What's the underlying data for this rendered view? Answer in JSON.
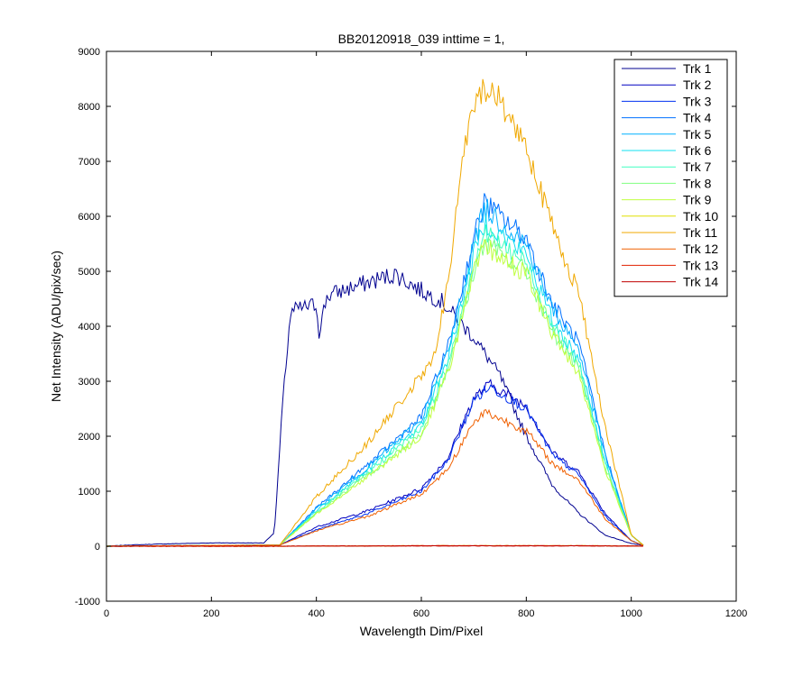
{
  "chart_data": {
    "type": "line",
    "title": "BB20120918_039 inttime = 1,",
    "xlabel": "Wavelength Dim/Pixel",
    "ylabel": "Net Intensity (ADU/pix/sec)",
    "xlim": [
      0,
      1200
    ],
    "ylim": [
      -1000,
      9000
    ],
    "xticks": [
      "0",
      "200",
      "400",
      "600",
      "800",
      "1000",
      "1200"
    ],
    "yticks": [
      "-1000",
      "0",
      "1000",
      "2000",
      "3000",
      "4000",
      "5000",
      "6000",
      "7000",
      "8000",
      "9000"
    ],
    "grid": false,
    "legend_position": "top-right",
    "series": [
      {
        "name": "Trk 1",
        "color": "#00008F",
        "x": [
          0,
          40,
          100,
          200,
          300,
          320,
          335,
          350,
          360,
          380,
          400,
          405,
          420,
          450,
          500,
          550,
          600,
          640,
          680,
          700,
          750,
          800,
          850,
          900,
          950,
          1000,
          1024
        ],
        "y": [
          0,
          20,
          40,
          60,
          60,
          250,
          2500,
          4200,
          4300,
          4350,
          4400,
          3900,
          4550,
          4650,
          4800,
          4950,
          4650,
          4450,
          4000,
          3800,
          3100,
          2000,
          1100,
          600,
          200,
          50,
          10
        ]
      },
      {
        "name": "Trk 2",
        "color": "#0000C0",
        "x": [
          0,
          330,
          400,
          500,
          600,
          650,
          700,
          730,
          800,
          850,
          900,
          950,
          1000,
          1024
        ],
        "y": [
          0,
          20,
          350,
          650,
          1050,
          1600,
          2700,
          2950,
          2550,
          1700,
          1350,
          600,
          100,
          10
        ]
      },
      {
        "name": "Trk 3",
        "color": "#0030F0",
        "x": [
          0,
          330,
          400,
          500,
          600,
          650,
          700,
          730,
          800,
          850,
          900,
          950,
          1000,
          1024
        ],
        "y": [
          0,
          20,
          300,
          600,
          1000,
          1550,
          2650,
          2900,
          2500,
          1650,
          1300,
          550,
          100,
          10
        ]
      },
      {
        "name": "Trk 4",
        "color": "#0070FF",
        "x": [
          0,
          330,
          400,
          500,
          600,
          650,
          700,
          720,
          800,
          850,
          900,
          950,
          1000,
          1024
        ],
        "y": [
          0,
          20,
          700,
          1500,
          2350,
          3600,
          5600,
          6250,
          5600,
          4400,
          3700,
          1700,
          200,
          10
        ]
      },
      {
        "name": "Trk 5",
        "color": "#00B0FF",
        "x": [
          0,
          330,
          400,
          500,
          600,
          650,
          700,
          720,
          800,
          850,
          900,
          950,
          1000,
          1024
        ],
        "y": [
          0,
          20,
          680,
          1450,
          2300,
          3500,
          5500,
          6150,
          5500,
          4300,
          3600,
          1650,
          200,
          10
        ]
      },
      {
        "name": "Trk 6",
        "color": "#10E0F0",
        "x": [
          0,
          330,
          400,
          500,
          600,
          650,
          700,
          720,
          800,
          850,
          900,
          950,
          1000,
          1024
        ],
        "y": [
          0,
          20,
          650,
          1400,
          2200,
          3400,
          5300,
          5900,
          5300,
          4100,
          3400,
          1550,
          200,
          10
        ]
      },
      {
        "name": "Trk 7",
        "color": "#40FFC0",
        "x": [
          0,
          330,
          400,
          500,
          600,
          650,
          700,
          720,
          800,
          850,
          900,
          950,
          1000,
          1024
        ],
        "y": [
          0,
          20,
          620,
          1350,
          2150,
          3300,
          5150,
          5700,
          5150,
          4000,
          3300,
          1500,
          200,
          10
        ]
      },
      {
        "name": "Trk 8",
        "color": "#80FF80",
        "x": [
          0,
          330,
          400,
          500,
          600,
          650,
          700,
          720,
          800,
          850,
          900,
          950,
          1000,
          1024
        ],
        "y": [
          0,
          20,
          600,
          1300,
          2050,
          3200,
          5000,
          5500,
          5000,
          3900,
          3200,
          1450,
          200,
          10
        ]
      },
      {
        "name": "Trk 9",
        "color": "#C0FF40",
        "x": [
          0,
          330,
          400,
          500,
          600,
          650,
          700,
          720,
          800,
          850,
          900,
          950,
          1000,
          1024
        ],
        "y": [
          0,
          20,
          590,
          1280,
          2000,
          3150,
          4950,
          5450,
          4950,
          3850,
          3150,
          1400,
          200,
          10
        ]
      },
      {
        "name": "Trk 10",
        "color": "#E0E000",
        "x": [
          0,
          330,
          400,
          500,
          600,
          700,
          800,
          900,
          1000,
          1024
        ],
        "y": [
          0,
          0,
          5,
          5,
          10,
          10,
          10,
          10,
          5,
          0
        ]
      },
      {
        "name": "Trk 11",
        "color": "#F0A800",
        "x": [
          0,
          330,
          400,
          500,
          600,
          620,
          650,
          680,
          700,
          720,
          750,
          800,
          850,
          900,
          950,
          1000,
          1024
        ],
        "y": [
          0,
          20,
          900,
          1900,
          3100,
          3300,
          4700,
          7200,
          7900,
          8400,
          8100,
          7300,
          5800,
          4600,
          2200,
          200,
          10
        ]
      },
      {
        "name": "Trk 12",
        "color": "#F06000",
        "x": [
          0,
          330,
          400,
          500,
          600,
          650,
          700,
          720,
          800,
          850,
          900,
          950,
          1000,
          1024
        ],
        "y": [
          0,
          20,
          280,
          550,
          950,
          1400,
          2250,
          2450,
          2100,
          1500,
          1200,
          500,
          100,
          10
        ]
      },
      {
        "name": "Trk 13",
        "color": "#E02000",
        "x": [
          0,
          330,
          400,
          500,
          600,
          700,
          800,
          900,
          1000,
          1024
        ],
        "y": [
          0,
          0,
          5,
          5,
          10,
          10,
          10,
          10,
          5,
          0
        ]
      },
      {
        "name": "Trk 14",
        "color": "#C00000",
        "x": [
          0,
          330,
          400,
          500,
          600,
          700,
          800,
          900,
          1000,
          1024
        ],
        "y": [
          0,
          0,
          3,
          3,
          5,
          5,
          5,
          5,
          3,
          0
        ]
      }
    ]
  }
}
